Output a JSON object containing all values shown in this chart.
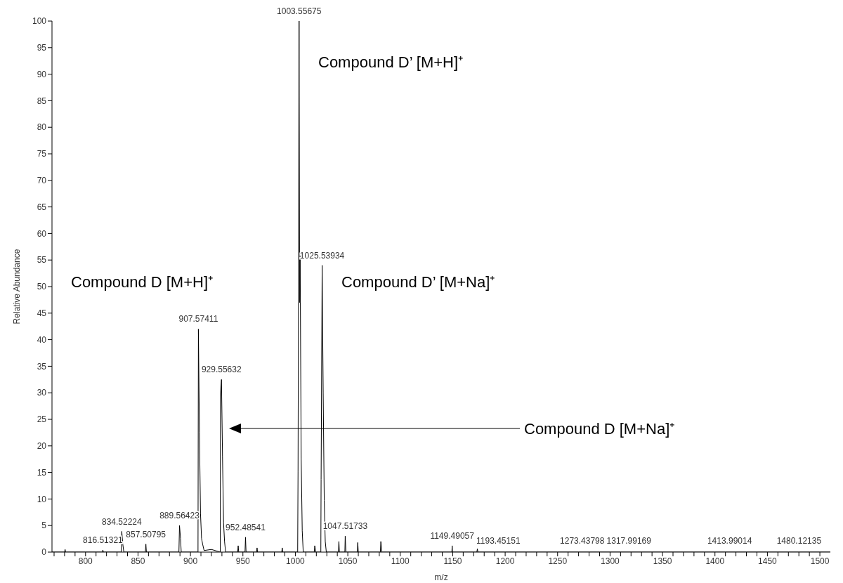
{
  "chart_data": {
    "type": "line",
    "xlabel": "m/z",
    "ylabel": "Relative Abundance",
    "color": "#000000",
    "marker": "none",
    "line_style": "solid",
    "grid": false,
    "legend": false,
    "x": [
      768,
      780,
      780.5,
      781,
      816,
      816.5,
      817,
      834,
      834.52,
      835.5,
      836.5,
      857,
      857.51,
      858,
      889,
      889.56,
      890.56,
      891.2,
      907.2,
      907.57,
      908.57,
      909.57,
      910.57,
      911.6,
      913,
      920,
      928.4,
      928.6,
      929.56,
      930.56,
      931.56,
      932.5,
      933.5,
      945,
      945.5,
      946,
      952,
      952.49,
      953,
      963,
      963.5,
      964,
      987,
      987.5,
      988,
      1002.2,
      1002.56,
      1003.56,
      1004.1,
      1004.56,
      1005.56,
      1006.56,
      1007.5,
      1018,
      1018.5,
      1019.5,
      1024.3,
      1024.54,
      1025.54,
      1026.54,
      1027.54,
      1028.5,
      1029.5,
      1041,
      1041.5,
      1042,
      1047.2,
      1047.52,
      1048.2,
      1059,
      1059.5,
      1060,
      1081,
      1081.5,
      1082.5,
      1149.2,
      1149.49,
      1149.8,
      1173,
      1173.5,
      1174,
      1510
    ],
    "values": [
      0,
      0,
      0.5,
      0,
      0,
      0.4,
      0,
      0,
      3.9,
      1.5,
      0,
      0,
      1.5,
      0,
      0,
      5,
      2.6,
      0,
      0,
      42,
      22.6,
      7.3,
      2.6,
      1.5,
      0.3,
      0.5,
      0,
      29.9,
      32.5,
      18,
      5.5,
      2,
      0,
      0,
      1.2,
      0,
      0,
      2.8,
      0,
      0,
      0.8,
      0,
      0,
      0.8,
      0,
      0,
      15.2,
      100,
      47,
      56,
      17.5,
      4,
      0,
      0,
      1.2,
      0,
      0,
      13.7,
      54,
      30,
      9.7,
      2,
      0,
      0,
      2,
      0,
      0,
      3,
      0,
      0,
      1.8,
      0,
      0,
      2,
      0,
      0,
      1.2,
      0,
      0,
      0.6,
      0,
      0
    ],
    "xlim": [
      768,
      1510
    ],
    "xticks": [
      {
        "value": 770,
        "label": null
      },
      {
        "value": 780,
        "label": null
      },
      {
        "value": 790,
        "label": null
      },
      800,
      {
        "value": 810,
        "label": null
      },
      {
        "value": 820,
        "label": null
      },
      {
        "value": 830,
        "label": null
      },
      {
        "value": 840,
        "label": null
      },
      850,
      {
        "value": 860,
        "label": null
      },
      {
        "value": 870,
        "label": null
      },
      {
        "value": 880,
        "label": null
      },
      {
        "value": 890,
        "label": null
      },
      900,
      {
        "value": 910,
        "label": null
      },
      {
        "value": 920,
        "label": null
      },
      {
        "value": 930,
        "label": null
      },
      {
        "value": 940,
        "label": null
      },
      950,
      {
        "value": 960,
        "label": null
      },
      {
        "value": 970,
        "label": null
      },
      {
        "value": 980,
        "label": null
      },
      {
        "value": 990,
        "label": null
      },
      1000,
      {
        "value": 1010,
        "label": null
      },
      {
        "value": 1020,
        "label": null
      },
      {
        "value": 1030,
        "label": null
      },
      {
        "value": 1040,
        "label": null
      },
      1050,
      {
        "value": 1060,
        "label": null
      },
      {
        "value": 1070,
        "label": null
      },
      {
        "value": 1080,
        "label": null
      },
      {
        "value": 1090,
        "label": null
      },
      1100,
      {
        "value": 1110,
        "label": null
      },
      {
        "value": 1120,
        "label": null
      },
      {
        "value": 1130,
        "label": null
      },
      {
        "value": 1140,
        "label": null
      },
      1150,
      {
        "value": 1160,
        "label": null
      },
      {
        "value": 1170,
        "label": null
      },
      {
        "value": 1180,
        "label": null
      },
      {
        "value": 1190,
        "label": null
      },
      1200,
      {
        "value": 1210,
        "label": null
      },
      {
        "value": 1220,
        "label": null
      },
      {
        "value": 1230,
        "label": null
      },
      {
        "value": 1240,
        "label": null
      },
      1250,
      {
        "value": 1260,
        "label": null
      },
      {
        "value": 1270,
        "label": null
      },
      {
        "value": 1280,
        "label": null
      },
      {
        "value": 1290,
        "label": null
      },
      1300,
      {
        "value": 1310,
        "label": null
      },
      {
        "value": 1320,
        "label": null
      },
      {
        "value": 1330,
        "label": null
      },
      {
        "value": 1340,
        "label": null
      },
      1350,
      {
        "value": 1360,
        "label": null
      },
      {
        "value": 1370,
        "label": null
      },
      {
        "value": 1380,
        "label": null
      },
      {
        "value": 1390,
        "label": null
      },
      1400,
      {
        "value": 1410,
        "label": null
      },
      {
        "value": 1420,
        "label": null
      },
      {
        "value": 1430,
        "label": null
      },
      {
        "value": 1440,
        "label": null
      },
      1450,
      {
        "value": 1460,
        "label": null
      },
      {
        "value": 1470,
        "label": null
      },
      {
        "value": 1480,
        "label": null
      },
      {
        "value": 1490,
        "label": null
      },
      1500
    ],
    "ylim": [
      0,
      100
    ],
    "yticks": [
      0,
      5,
      10,
      15,
      20,
      25,
      30,
      35,
      40,
      45,
      50,
      55,
      60,
      65,
      70,
      75,
      80,
      85,
      90,
      95,
      100
    ],
    "annotations": [
      {
        "text": "1003.55675",
        "x": 1003.56,
        "y": 100
      },
      {
        "text": "1025.53934",
        "x": 1025.54,
        "y": 54
      },
      {
        "text": "907.57411",
        "x": 907.57,
        "y": 42
      },
      {
        "text": "929.55632",
        "x": 929.56,
        "y": 32.5
      },
      {
        "text": "889.56423",
        "x": 889.56,
        "y": 5
      },
      {
        "text": "834.52224",
        "x": 834.52,
        "y": 3.9
      },
      {
        "text": "857.50795",
        "x": 857.51,
        "y": 1.5
      },
      {
        "text": "816.51321",
        "x": 816.51,
        "y": 0.4
      },
      {
        "text": "952.48541",
        "x": 952.49,
        "y": 2.8
      },
      {
        "text": "1047.51733",
        "x": 1047.52,
        "y": 3
      },
      {
        "text": "1149.49057",
        "x": 1149.49,
        "y": 1.2
      },
      {
        "text": "1193.45151",
        "x": 1193.45,
        "y": 0.2
      },
      {
        "text": "1273.43798",
        "x": 1273.44,
        "y": 0.2
      },
      {
        "text": "1317.99169",
        "x": 1317.99,
        "y": 0.2
      },
      {
        "text": "1413.99014",
        "x": 1413.99,
        "y": 0.2
      },
      {
        "text": "1480.12135",
        "x": 1480.12,
        "y": 0.2
      },
      "Compound D’ [M+H]⁺",
      "Compound D [M+H]⁺",
      "Compound D’ [M+Na]⁺",
      "Compound D [M+Na]⁺"
    ]
  }
}
